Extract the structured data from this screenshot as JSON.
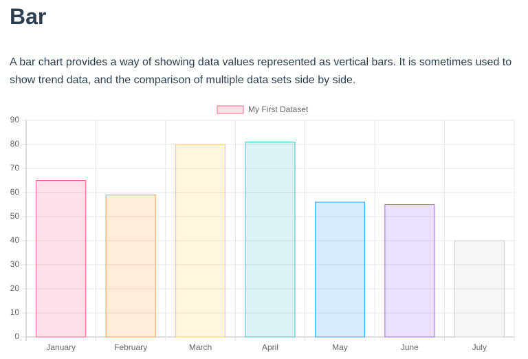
{
  "header": {
    "title": "Bar"
  },
  "description": "A bar chart provides a way of showing data values represented as vertical bars. It is sometimes used to show trend data, and the comparison of multiple data sets side by side.",
  "chart_data": {
    "type": "bar",
    "categories": [
      "January",
      "February",
      "March",
      "April",
      "May",
      "June",
      "July"
    ],
    "series": [
      {
        "name": "My First Dataset",
        "values": [
          65,
          59,
          80,
          81,
          56,
          55,
          40
        ],
        "colors": [
          "rgba(255,99,132,0.2)",
          "rgba(255,159,64,0.2)",
          "rgba(255,205,86,0.2)",
          "rgba(75,192,192,0.2)",
          "rgba(54,162,235,0.2)",
          "rgba(153,102,255,0.2)",
          "rgba(201,203,207,0.2)"
        ],
        "border_colors": [
          "rgb(255,99,132)",
          "rgb(255,159,64)",
          "rgb(255,205,86)",
          "rgb(75,192,192)",
          "rgb(54,162,235)",
          "rgb(153,102,255)",
          "rgb(201,203,207)"
        ]
      }
    ],
    "ylim": [
      0,
      90
    ],
    "yticks": [
      0,
      10,
      20,
      30,
      40,
      50,
      60,
      70,
      80,
      90
    ],
    "grid": true,
    "legend": "top"
  }
}
